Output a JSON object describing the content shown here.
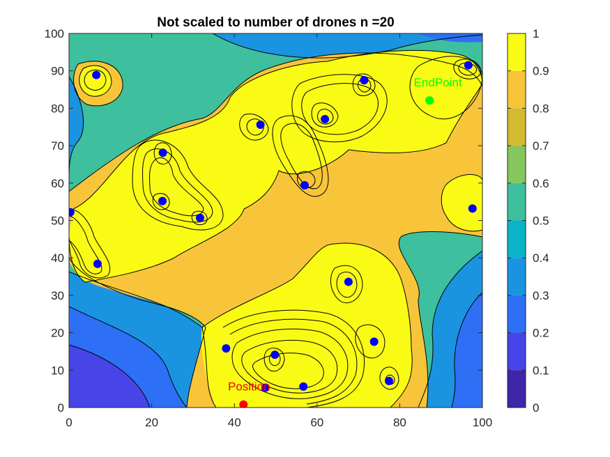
{
  "chart_data": {
    "type": "contour",
    "title": "Not scaled to number of drones n =20",
    "xlabel": "",
    "ylabel": "",
    "xlim": [
      0,
      100
    ],
    "ylim": [
      0,
      100
    ],
    "xticks": [
      0,
      20,
      40,
      60,
      80,
      100
    ],
    "yticks": [
      0,
      10,
      20,
      30,
      40,
      50,
      60,
      70,
      80,
      90,
      100
    ],
    "colormap": "parula",
    "colorbar": {
      "limits": [
        0,
        1
      ],
      "ticks": [
        0,
        0.1,
        0.2,
        0.3,
        0.4,
        0.5,
        0.6,
        0.7,
        0.8,
        0.9,
        1
      ],
      "tick_labels": [
        "0",
        "0.1",
        "0.2",
        "0.3",
        "0.4",
        "0.5",
        "0.6",
        "0.7",
        "0.8",
        "0.9",
        "1"
      ],
      "colors": [
        "#3e26a8",
        "#4744e8",
        "#2d70f6",
        "#1a94e1",
        "#0ab3c6",
        "#3ebf9d",
        "#87c55e",
        "#d2bb31",
        "#f8c53a",
        "#f9fb15"
      ],
      "placement": "right"
    },
    "series": [
      {
        "kind": "drones",
        "color": "#0000ff",
        "points": [
          {
            "x": 6.6,
            "y": 88.9
          },
          {
            "x": 96.6,
            "y": 91.5
          },
          {
            "x": 71.4,
            "y": 87.5
          },
          {
            "x": 61.9,
            "y": 77.1
          },
          {
            "x": 46.3,
            "y": 75.6
          },
          {
            "x": 22.7,
            "y": 68.1
          },
          {
            "x": 57.0,
            "y": 59.4
          },
          {
            "x": 22.6,
            "y": 55.2
          },
          {
            "x": 31.7,
            "y": 50.7
          },
          {
            "x": 97.6,
            "y": 53.2
          },
          {
            "x": 0.3,
            "y": 52.2
          },
          {
            "x": 6.9,
            "y": 38.4
          },
          {
            "x": 67.6,
            "y": 33.6
          },
          {
            "x": 73.8,
            "y": 17.6
          },
          {
            "x": 38.0,
            "y": 15.8
          },
          {
            "x": 49.8,
            "y": 14.1
          },
          {
            "x": 56.7,
            "y": 5.6
          },
          {
            "x": 47.5,
            "y": 5.3
          },
          {
            "x": 77.4,
            "y": 7.1
          }
        ]
      },
      {
        "kind": "end-point",
        "label": "EndPoint",
        "color": "#00ff00",
        "points": [
          {
            "x": 87.2,
            "y": 82.1
          }
        ]
      },
      {
        "kind": "position",
        "label": "Position",
        "color": "#ff0000",
        "points": [
          {
            "x": 42.2,
            "y": 0.8
          }
        ]
      }
    ]
  }
}
